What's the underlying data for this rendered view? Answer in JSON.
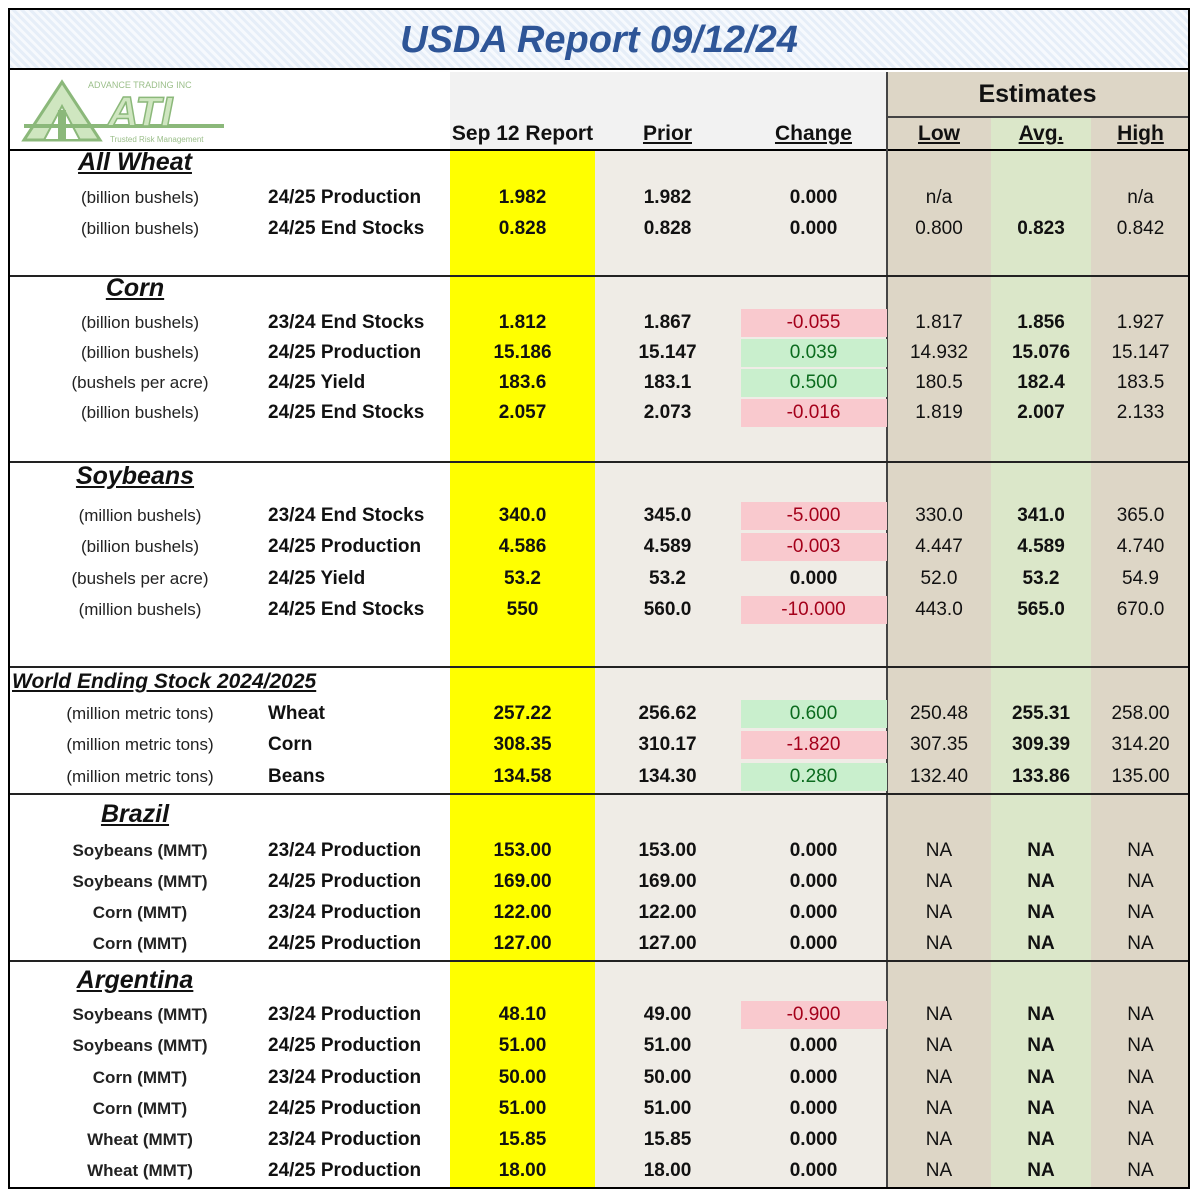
{
  "title": "USDA Report 09/12/24",
  "logo": {
    "top_text": "ADVANCE TRADING INC",
    "mark": "ATI",
    "tagline": "Trusted Risk Management",
    "colors": {
      "green": "#b8d9a8",
      "dark": "#4f7a3c"
    }
  },
  "headers": {
    "current": "Sep 12 Report",
    "prior": "Prior",
    "change": "Change",
    "estimates": "Estimates",
    "low": "Low",
    "avg": "Avg.",
    "high": "High"
  },
  "sections": [
    {
      "name": "All Wheat",
      "rows": [
        {
          "unit": "(billion bushels)",
          "label": "24/25 Production",
          "current": "1.982",
          "prior": "1.982",
          "change": "0.000",
          "low": "n/a",
          "avg": "",
          "high": "n/a"
        },
        {
          "unit": "(billion bushels)",
          "label": "24/25 End Stocks",
          "current": "0.828",
          "prior": "0.828",
          "change": "0.000",
          "low": "0.800",
          "avg": "0.823",
          "high": "0.842"
        }
      ]
    },
    {
      "name": "Corn",
      "rows": [
        {
          "unit": "(billion bushels)",
          "label": "23/24 End Stocks",
          "current": "1.812",
          "prior": "1.867",
          "change": "-0.055",
          "low": "1.817",
          "avg": "1.856",
          "high": "1.927"
        },
        {
          "unit": "(billion bushels)",
          "label": "24/25 Production",
          "current": "15.186",
          "prior": "15.147",
          "change": "0.039",
          "low": "14.932",
          "avg": "15.076",
          "high": "15.147"
        },
        {
          "unit": "(bushels per acre)",
          "label": "24/25 Yield",
          "current": "183.6",
          "prior": "183.1",
          "change": "0.500",
          "low": "180.5",
          "avg": "182.4",
          "high": "183.5"
        },
        {
          "unit": "(billion bushels)",
          "label": "24/25 End Stocks",
          "current": "2.057",
          "prior": "2.073",
          "change": "-0.016",
          "low": "1.819",
          "avg": "2.007",
          "high": "2.133"
        }
      ]
    },
    {
      "name": "Soybeans",
      "rows": [
        {
          "unit": "(million bushels)",
          "label": "23/24 End Stocks",
          "current": "340.0",
          "prior": "345.0",
          "change": "-5.000",
          "low": "330.0",
          "avg": "341.0",
          "high": "365.0"
        },
        {
          "unit": "(billion bushels)",
          "label": "24/25 Production",
          "current": "4.586",
          "prior": "4.589",
          "change": "-0.003",
          "low": "4.447",
          "avg": "4.589",
          "high": "4.740"
        },
        {
          "unit": "(bushels per acre)",
          "label": "24/25 Yield",
          "current": "53.2",
          "prior": "53.2",
          "change": "0.000",
          "low": "52.0",
          "avg": "53.2",
          "high": "54.9"
        },
        {
          "unit": "(million bushels)",
          "label": "24/25 End Stocks",
          "current": "550",
          "prior": "560.0",
          "change": "-10.000",
          "low": "443.0",
          "avg": "565.0",
          "high": "670.0"
        }
      ]
    },
    {
      "name": "World Ending Stock 2024/2025",
      "rows": [
        {
          "unit": "(million metric tons)",
          "label": "Wheat",
          "current": "257.22",
          "prior": "256.62",
          "change": "0.600",
          "low": "250.48",
          "avg": "255.31",
          "high": "258.00"
        },
        {
          "unit": "(million metric tons)",
          "label": "Corn",
          "current": "308.35",
          "prior": "310.17",
          "change": "-1.820",
          "low": "307.35",
          "avg": "309.39",
          "high": "314.20"
        },
        {
          "unit": "(million metric tons)",
          "label": "Beans",
          "current": "134.58",
          "prior": "134.30",
          "change": "0.280",
          "low": "132.40",
          "avg": "133.86",
          "high": "135.00"
        }
      ]
    },
    {
      "name": "Brazil",
      "rows": [
        {
          "unit": "Soybeans (MMT)",
          "label": "23/24 Production",
          "current": "153.00",
          "prior": "153.00",
          "change": "0.000",
          "low": "NA",
          "avg": "NA",
          "high": "NA"
        },
        {
          "unit": "Soybeans (MMT)",
          "label": "24/25 Production",
          "current": "169.00",
          "prior": "169.00",
          "change": "0.000",
          "low": "NA",
          "avg": "NA",
          "high": "NA"
        },
        {
          "unit": "Corn (MMT)",
          "label": "23/24 Production",
          "current": "122.00",
          "prior": "122.00",
          "change": "0.000",
          "low": "NA",
          "avg": "NA",
          "high": "NA"
        },
        {
          "unit": "Corn (MMT)",
          "label": "24/25 Production",
          "current": "127.00",
          "prior": "127.00",
          "change": "0.000",
          "low": "NA",
          "avg": "NA",
          "high": "NA"
        }
      ]
    },
    {
      "name": "Argentina",
      "rows": [
        {
          "unit": "Soybeans (MMT)",
          "label": "23/24 Production",
          "current": "48.10",
          "prior": "49.00",
          "change": "-0.900",
          "low": "NA",
          "avg": "NA",
          "high": "NA"
        },
        {
          "unit": "Soybeans (MMT)",
          "label": "24/25 Production",
          "current": "51.00",
          "prior": "51.00",
          "change": "0.000",
          "low": "NA",
          "avg": "NA",
          "high": "NA"
        },
        {
          "unit": "Corn (MMT)",
          "label": "23/24 Production",
          "current": "50.00",
          "prior": "50.00",
          "change": "0.000",
          "low": "NA",
          "avg": "NA",
          "high": "NA"
        },
        {
          "unit": "Corn (MMT)",
          "label": "24/25 Production",
          "current": "51.00",
          "prior": "51.00",
          "change": "0.000",
          "low": "NA",
          "avg": "NA",
          "high": "NA"
        },
        {
          "unit": "Wheat (MMT)",
          "label": "23/24 Production",
          "current": "15.85",
          "prior": "15.85",
          "change": "0.000",
          "low": "NA",
          "avg": "NA",
          "high": "NA"
        },
        {
          "unit": "Wheat (MMT)",
          "label": "24/25 Production",
          "current": "18.00",
          "prior": "18.00",
          "change": "0.000",
          "low": "NA",
          "avg": "NA",
          "high": "NA"
        }
      ]
    }
  ],
  "colors": {
    "current_column": "#ffff00",
    "negative_change_bg": "#f9c9ce",
    "negative_change_text": "#a4001a",
    "positive_change_bg": "#c9efcd",
    "positive_change_text": "#0b6b1e",
    "title_text": "#2e5597"
  }
}
